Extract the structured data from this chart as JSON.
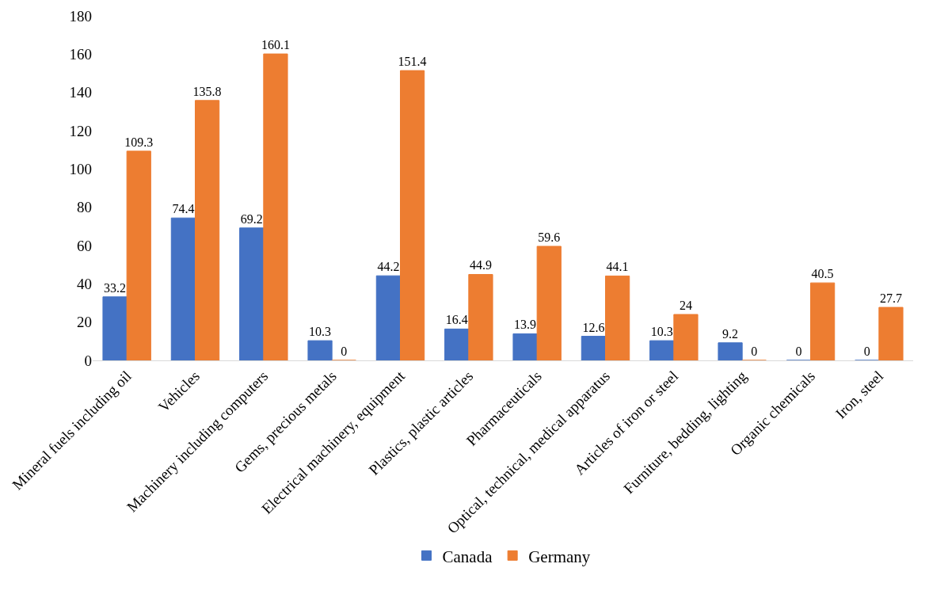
{
  "chart_data": {
    "type": "bar",
    "categories": [
      "Mineral fuels including oil",
      "Vehicles",
      "Machinery including computers",
      "Gems, precious metals",
      "Electrical machinery, equipment",
      "Plastics, plastic articles",
      "Pharmaceuticals",
      "Optical, technical, medical apparatus",
      "Articles of iron or steel",
      "Furniture, bedding, lighting",
      "Organic chemicals",
      "Iron, steel"
    ],
    "series": [
      {
        "name": "Canada",
        "color": "#4472c4",
        "values": [
          33.2,
          74.4,
          69.2,
          10.3,
          44.2,
          16.4,
          13.9,
          12.6,
          10.3,
          9.2,
          0,
          0
        ]
      },
      {
        "name": "Germany",
        "color": "#ed7d31",
        "values": [
          109.3,
          135.8,
          160.1,
          0,
          151.4,
          44.9,
          59.6,
          44.1,
          24,
          0,
          40.5,
          27.7
        ]
      }
    ],
    "ylim": [
      0,
      180
    ],
    "yticks": [
      0,
      20,
      40,
      60,
      80,
      100,
      120,
      140,
      160,
      180
    ],
    "grid": false,
    "legend": "bottom",
    "data_labels": true
  }
}
